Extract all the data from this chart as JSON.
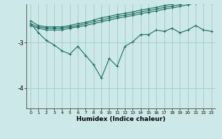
{
  "title": "",
  "xlabel": "Humidex (Indice chaleur)",
  "bg_color": "#cce8e8",
  "grid_color": "#aacccc",
  "line_color": "#1a6b5e",
  "x_data": [
    0,
    1,
    2,
    3,
    4,
    5,
    6,
    7,
    8,
    9,
    10,
    11,
    12,
    13,
    14,
    15,
    16,
    17,
    18,
    19,
    20,
    21,
    22,
    23
  ],
  "line_zigzag": [
    -2.58,
    -2.78,
    -2.95,
    -3.05,
    -3.18,
    -3.25,
    -3.08,
    -3.28,
    -3.48,
    -3.78,
    -3.35,
    -3.52,
    -3.08,
    -2.98,
    -2.82,
    -2.82,
    -2.72,
    -2.75,
    -2.68,
    -2.78,
    -2.72,
    -2.62,
    -2.72,
    -2.75
  ],
  "line_top1": [
    -2.52,
    -2.62,
    -2.65,
    -2.65,
    -2.65,
    -2.62,
    -2.58,
    -2.55,
    -2.5,
    -2.45,
    -2.42,
    -2.38,
    -2.35,
    -2.32,
    -2.28,
    -2.25,
    -2.22,
    -2.18,
    -2.15,
    -2.12,
    -2.08,
    -2.05,
    -2.05,
    -2.05
  ],
  "line_top2": [
    -2.58,
    -2.65,
    -2.68,
    -2.68,
    -2.68,
    -2.65,
    -2.62,
    -2.58,
    -2.54,
    -2.5,
    -2.46,
    -2.42,
    -2.39,
    -2.36,
    -2.32,
    -2.29,
    -2.26,
    -2.22,
    -2.19,
    -2.16,
    -2.12,
    -2.09,
    -2.08,
    -2.08
  ],
  "line_top3": [
    -2.62,
    -2.68,
    -2.72,
    -2.72,
    -2.72,
    -2.68,
    -2.65,
    -2.62,
    -2.58,
    -2.54,
    -2.5,
    -2.46,
    -2.43,
    -2.4,
    -2.36,
    -2.33,
    -2.3,
    -2.26,
    -2.23,
    -2.2,
    -2.16,
    -2.13,
    -2.12,
    -2.12
  ],
  "ylim": [
    -4.45,
    -2.15
  ],
  "yticks": [
    -4,
    -3
  ],
  "xticks": [
    0,
    1,
    2,
    3,
    4,
    5,
    6,
    7,
    8,
    9,
    10,
    11,
    12,
    13,
    14,
    15,
    16,
    17,
    18,
    19,
    20,
    21,
    22,
    23
  ]
}
